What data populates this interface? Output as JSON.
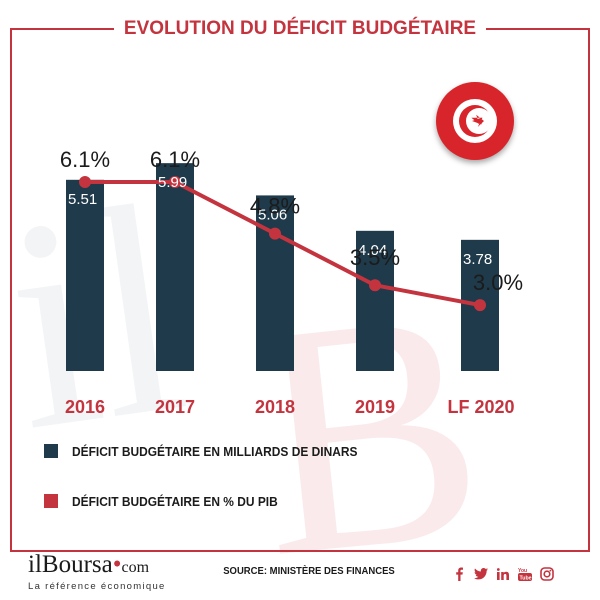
{
  "title": "EVOLUTION DU DÉFICIT BUDGÉTAIRE",
  "colors": {
    "accent": "#c4343f",
    "bar": "#1f3a4a",
    "line": "#c4343f",
    "text": "#1b1b1b"
  },
  "chart_data": {
    "type": "bar+line",
    "categories": [
      "2016",
      "2017",
      "2018",
      "2019",
      "LF 2020"
    ],
    "series": [
      {
        "name": "DÉFICIT BUDGÉTAIRE EN MILLIARDS DE DINARS",
        "type": "bar",
        "values": [
          5.51,
          5.99,
          5.06,
          4.04,
          3.78
        ],
        "labels": [
          "5.51",
          "5.99",
          "5.06",
          "4.04",
          "3.78"
        ]
      },
      {
        "name": "DÉFICIT BUDGÉTAIRE EN % DU PIB",
        "type": "line",
        "values": [
          6.1,
          6.1,
          4.8,
          3.5,
          3.0
        ],
        "labels": [
          "6.1%",
          "6.1%",
          "4.8%",
          "3.5%",
          "3.0%"
        ]
      }
    ],
    "legend_position": "bottom-left",
    "grid": false
  },
  "legend": [
    {
      "label": "DÉFICIT BUDGÉTAIRE EN MILLIARDS DE DINARS",
      "color": "#1f3a4a"
    },
    {
      "label": "DÉFICIT BUDGÉTAIRE EN % DU PIB",
      "color": "#c4343f"
    }
  ],
  "footer": {
    "logo_main": "ilBoursa",
    "logo_dot": "•",
    "logo_com": "com",
    "tagline": "La référence économique",
    "source": "SOURCE: MINISTÈRE DES FINANCES",
    "social_icons": [
      "facebook-icon",
      "twitter-icon",
      "linkedin-icon",
      "youtube-icon",
      "instagram-icon"
    ]
  }
}
